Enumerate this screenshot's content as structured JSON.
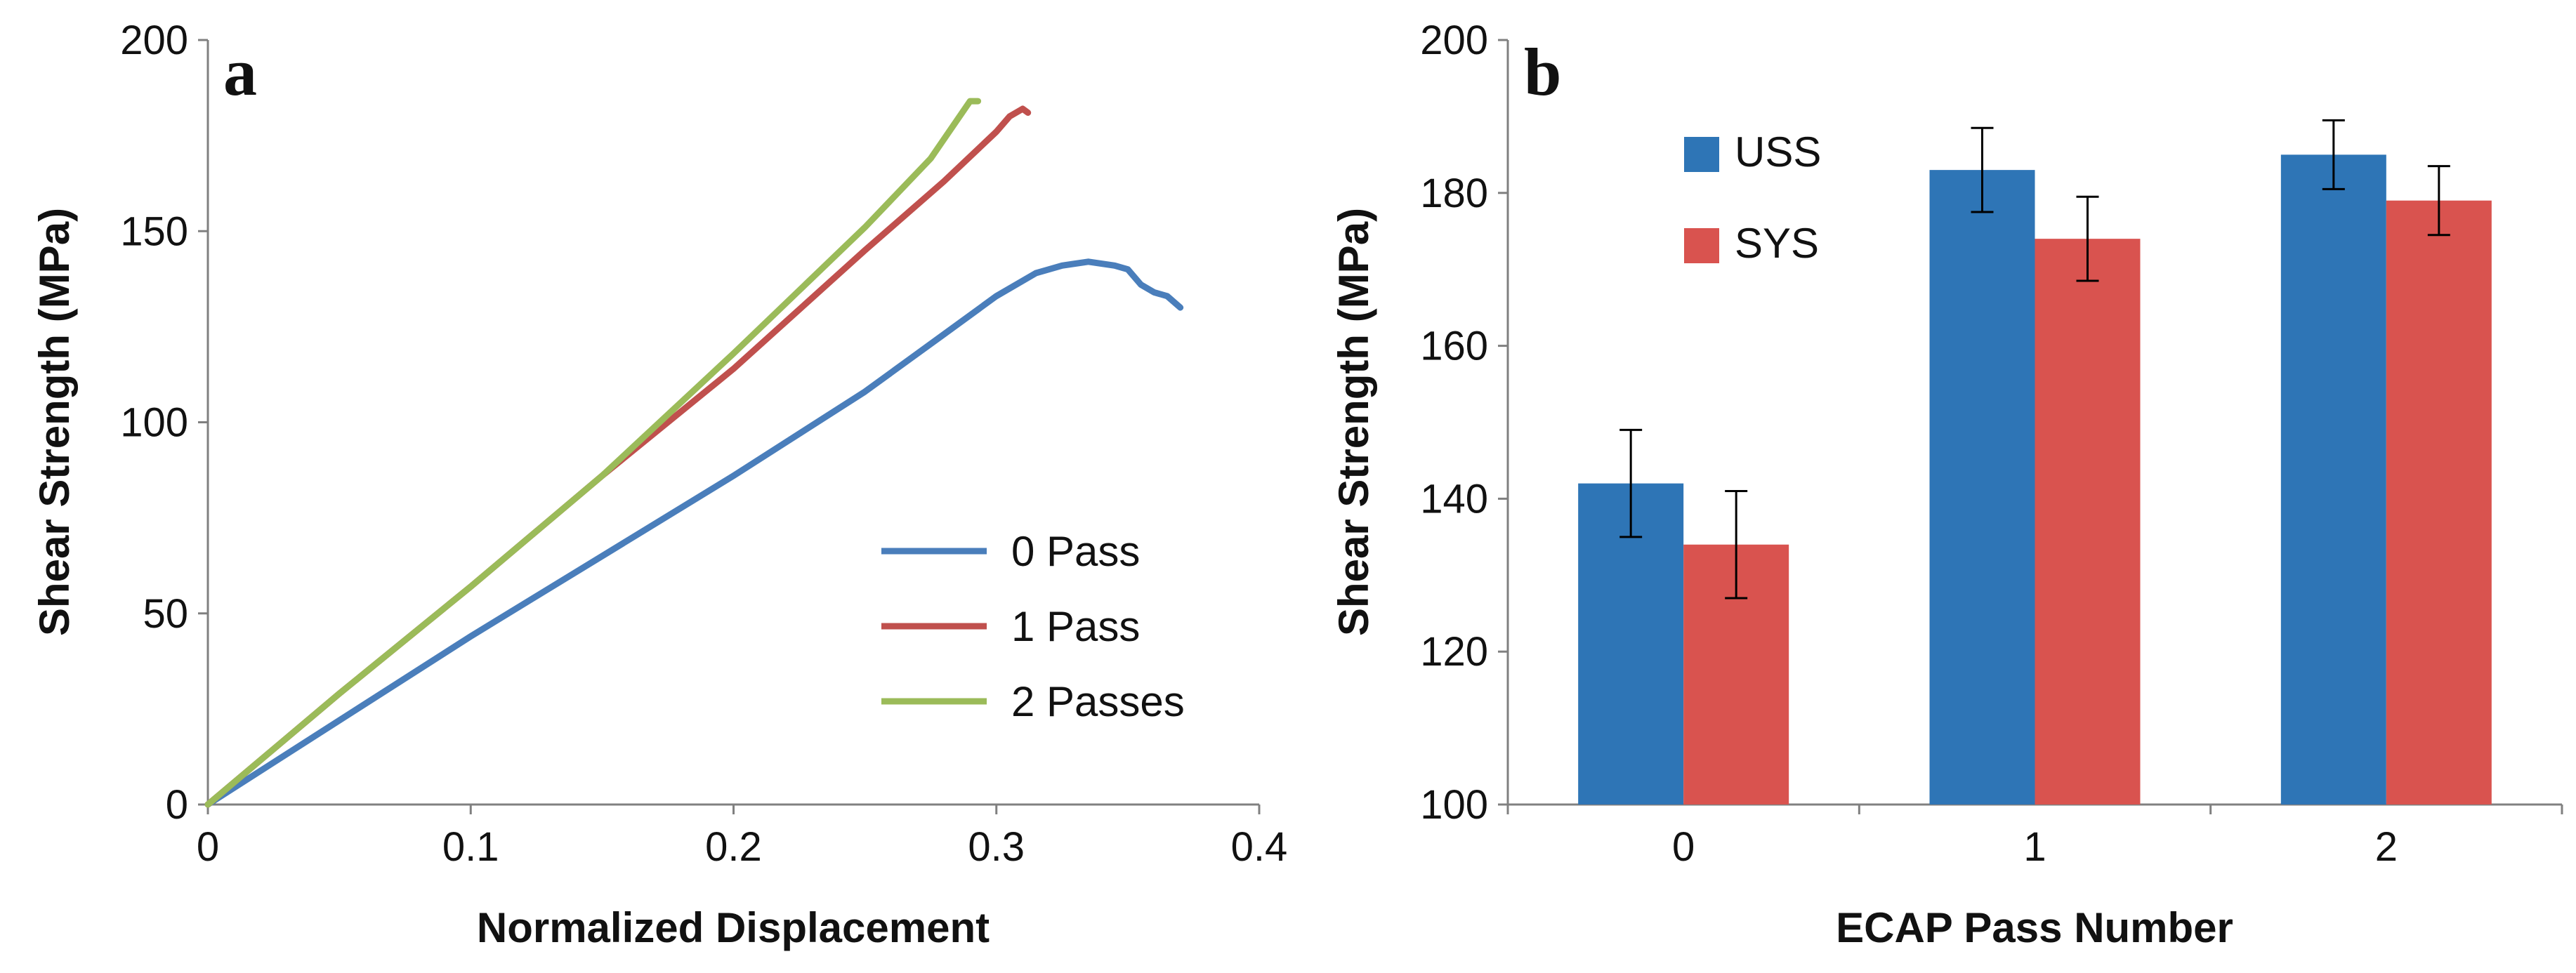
{
  "chart_data": [
    {
      "type": "line",
      "panel_label": "a",
      "xlabel": "Normalized Displacement",
      "ylabel": "Shear Strength (MPa)",
      "xlim": [
        0,
        0.4
      ],
      "ylim": [
        0,
        200
      ],
      "xticks": [
        0,
        0.1,
        0.2,
        0.3,
        0.4
      ],
      "xtick_labels": [
        "0",
        "0.1",
        "0.2",
        "0.3",
        "0.4"
      ],
      "yticks": [
        0,
        50,
        100,
        150,
        200
      ],
      "ytick_labels": [
        "0",
        "50",
        "100",
        "150",
        "200"
      ],
      "grid": false,
      "legend_position": "lower-right",
      "series": [
        {
          "name": "0 Pass",
          "color": "#4A7EBB",
          "x": [
            0,
            0.05,
            0.1,
            0.15,
            0.2,
            0.25,
            0.28,
            0.3,
            0.315,
            0.325,
            0.335,
            0.345,
            0.35,
            0.355,
            0.36,
            0.365,
            0.37
          ],
          "y": [
            0,
            22,
            44,
            65,
            86,
            108,
            123,
            133,
            139,
            141,
            142,
            141,
            140,
            136,
            134,
            133,
            130
          ]
        },
        {
          "name": "1 Pass",
          "color": "#C0504D",
          "x": [
            0,
            0.05,
            0.1,
            0.15,
            0.2,
            0.25,
            0.28,
            0.3,
            0.305,
            0.31,
            0.312
          ],
          "y": [
            0,
            29,
            57,
            86,
            114,
            145,
            163,
            176,
            180,
            182,
            181
          ]
        },
        {
          "name": "2 Passes",
          "color": "#9BBB59",
          "x": [
            0,
            0.05,
            0.1,
            0.15,
            0.2,
            0.25,
            0.275,
            0.29,
            0.293
          ],
          "y": [
            0,
            29,
            57,
            86,
            118,
            151,
            169,
            184,
            184
          ]
        }
      ]
    },
    {
      "type": "bar",
      "panel_label": "b",
      "xlabel": "ECAP Pass Number",
      "ylabel": "Shear Strength (MPa)",
      "categories": [
        "0",
        "1",
        "2"
      ],
      "ylim": [
        100,
        200
      ],
      "yticks": [
        100,
        120,
        140,
        160,
        180,
        200
      ],
      "ytick_labels": [
        "100",
        "120",
        "140",
        "160",
        "180",
        "200"
      ],
      "grid": false,
      "legend_position": "top-left",
      "series": [
        {
          "name": "USS",
          "color": "#2E75B6",
          "values": [
            142,
            183,
            185
          ],
          "errors": [
            7,
            5.5,
            4.5
          ]
        },
        {
          "name": "SYS",
          "color": "#D9534F",
          "values": [
            134,
            174,
            179
          ],
          "errors": [
            7,
            5.5,
            4.5
          ]
        }
      ]
    }
  ]
}
